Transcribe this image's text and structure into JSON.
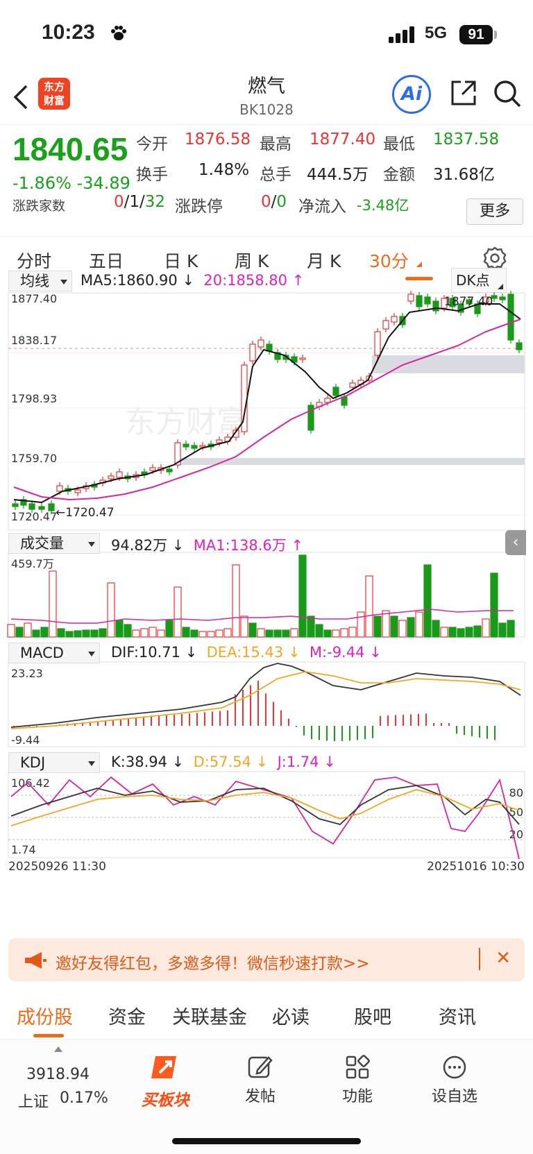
{
  "status": {
    "time": "10:23",
    "network": "5G",
    "battery": "91"
  },
  "header": {
    "logo_line1": "东方",
    "logo_line2": "财富",
    "title": "燃气",
    "code": "BK1028",
    "ai": "Ai"
  },
  "quote": {
    "price": "1840.65",
    "change_pct": "-1.86%",
    "change": "-34.89",
    "open_label": "今开",
    "open": "1876.58",
    "high_label": "最高",
    "high": "1877.40",
    "low_label": "最低",
    "low": "1837.58",
    "turnover_label": "换手",
    "turnover": "1.48%",
    "volume_label": "总手",
    "volume": "444.5万",
    "amount_label": "金额",
    "amount": "31.68亿",
    "updown_label": "涨跌家数",
    "up": "0",
    "flat": "1",
    "down": "32",
    "limit_label": "涨跌停",
    "limit_up": "0",
    "limit_down": "0",
    "netflow_label": "净流入",
    "netflow": "-3.48亿",
    "more": "更多"
  },
  "tabs": [
    "分时",
    "五日",
    "日 K",
    "周 K",
    "月 K",
    "30分"
  ],
  "chart": {
    "ma_select": "均线",
    "ma5": "MA5:1860.90",
    "ma20": "20:1858.80",
    "dk": "DK点",
    "y_labels": [
      "1877.40",
      "1838.17",
      "1798.93",
      "1759.70",
      "1720.47"
    ],
    "max_label": "1877.40",
    "min_label": "1720.47",
    "watermark": "东方财富",
    "vol_select": "成交量",
    "vol": "94.82万",
    "vol_ma": "MA1:138.6万",
    "vol_max": "459.7万",
    "macd_select": "MACD",
    "dif": "DIF:10.71",
    "dea": "DEA:15.43",
    "m": "M:-9.44",
    "macd_max": "23.23",
    "macd_min": "-9.44",
    "kdj_select": "KDJ",
    "k": "K:38.94",
    "d": "D:57.54",
    "j": "J:1.74",
    "kdj_max": "106.42",
    "kdj_min": "1.74",
    "kdj_levels": [
      "80",
      "50",
      "20"
    ],
    "date_start": "20250926 11:30",
    "date_end": "20251016 10:30"
  },
  "banner": {
    "text": "邀好友得红包，多邀多得！微信秒速打款>>",
    "close": "✕"
  },
  "bottom_tabs": [
    "成份股",
    "资金",
    "关联基金",
    "必读",
    "股吧",
    "资讯"
  ],
  "bottom_nav": {
    "index_value": "3918.94",
    "index_name": "上证",
    "index_change": "0.17%",
    "buy": "买板块",
    "post": "发帖",
    "func": "功能",
    "watch": "设自选"
  }
}
